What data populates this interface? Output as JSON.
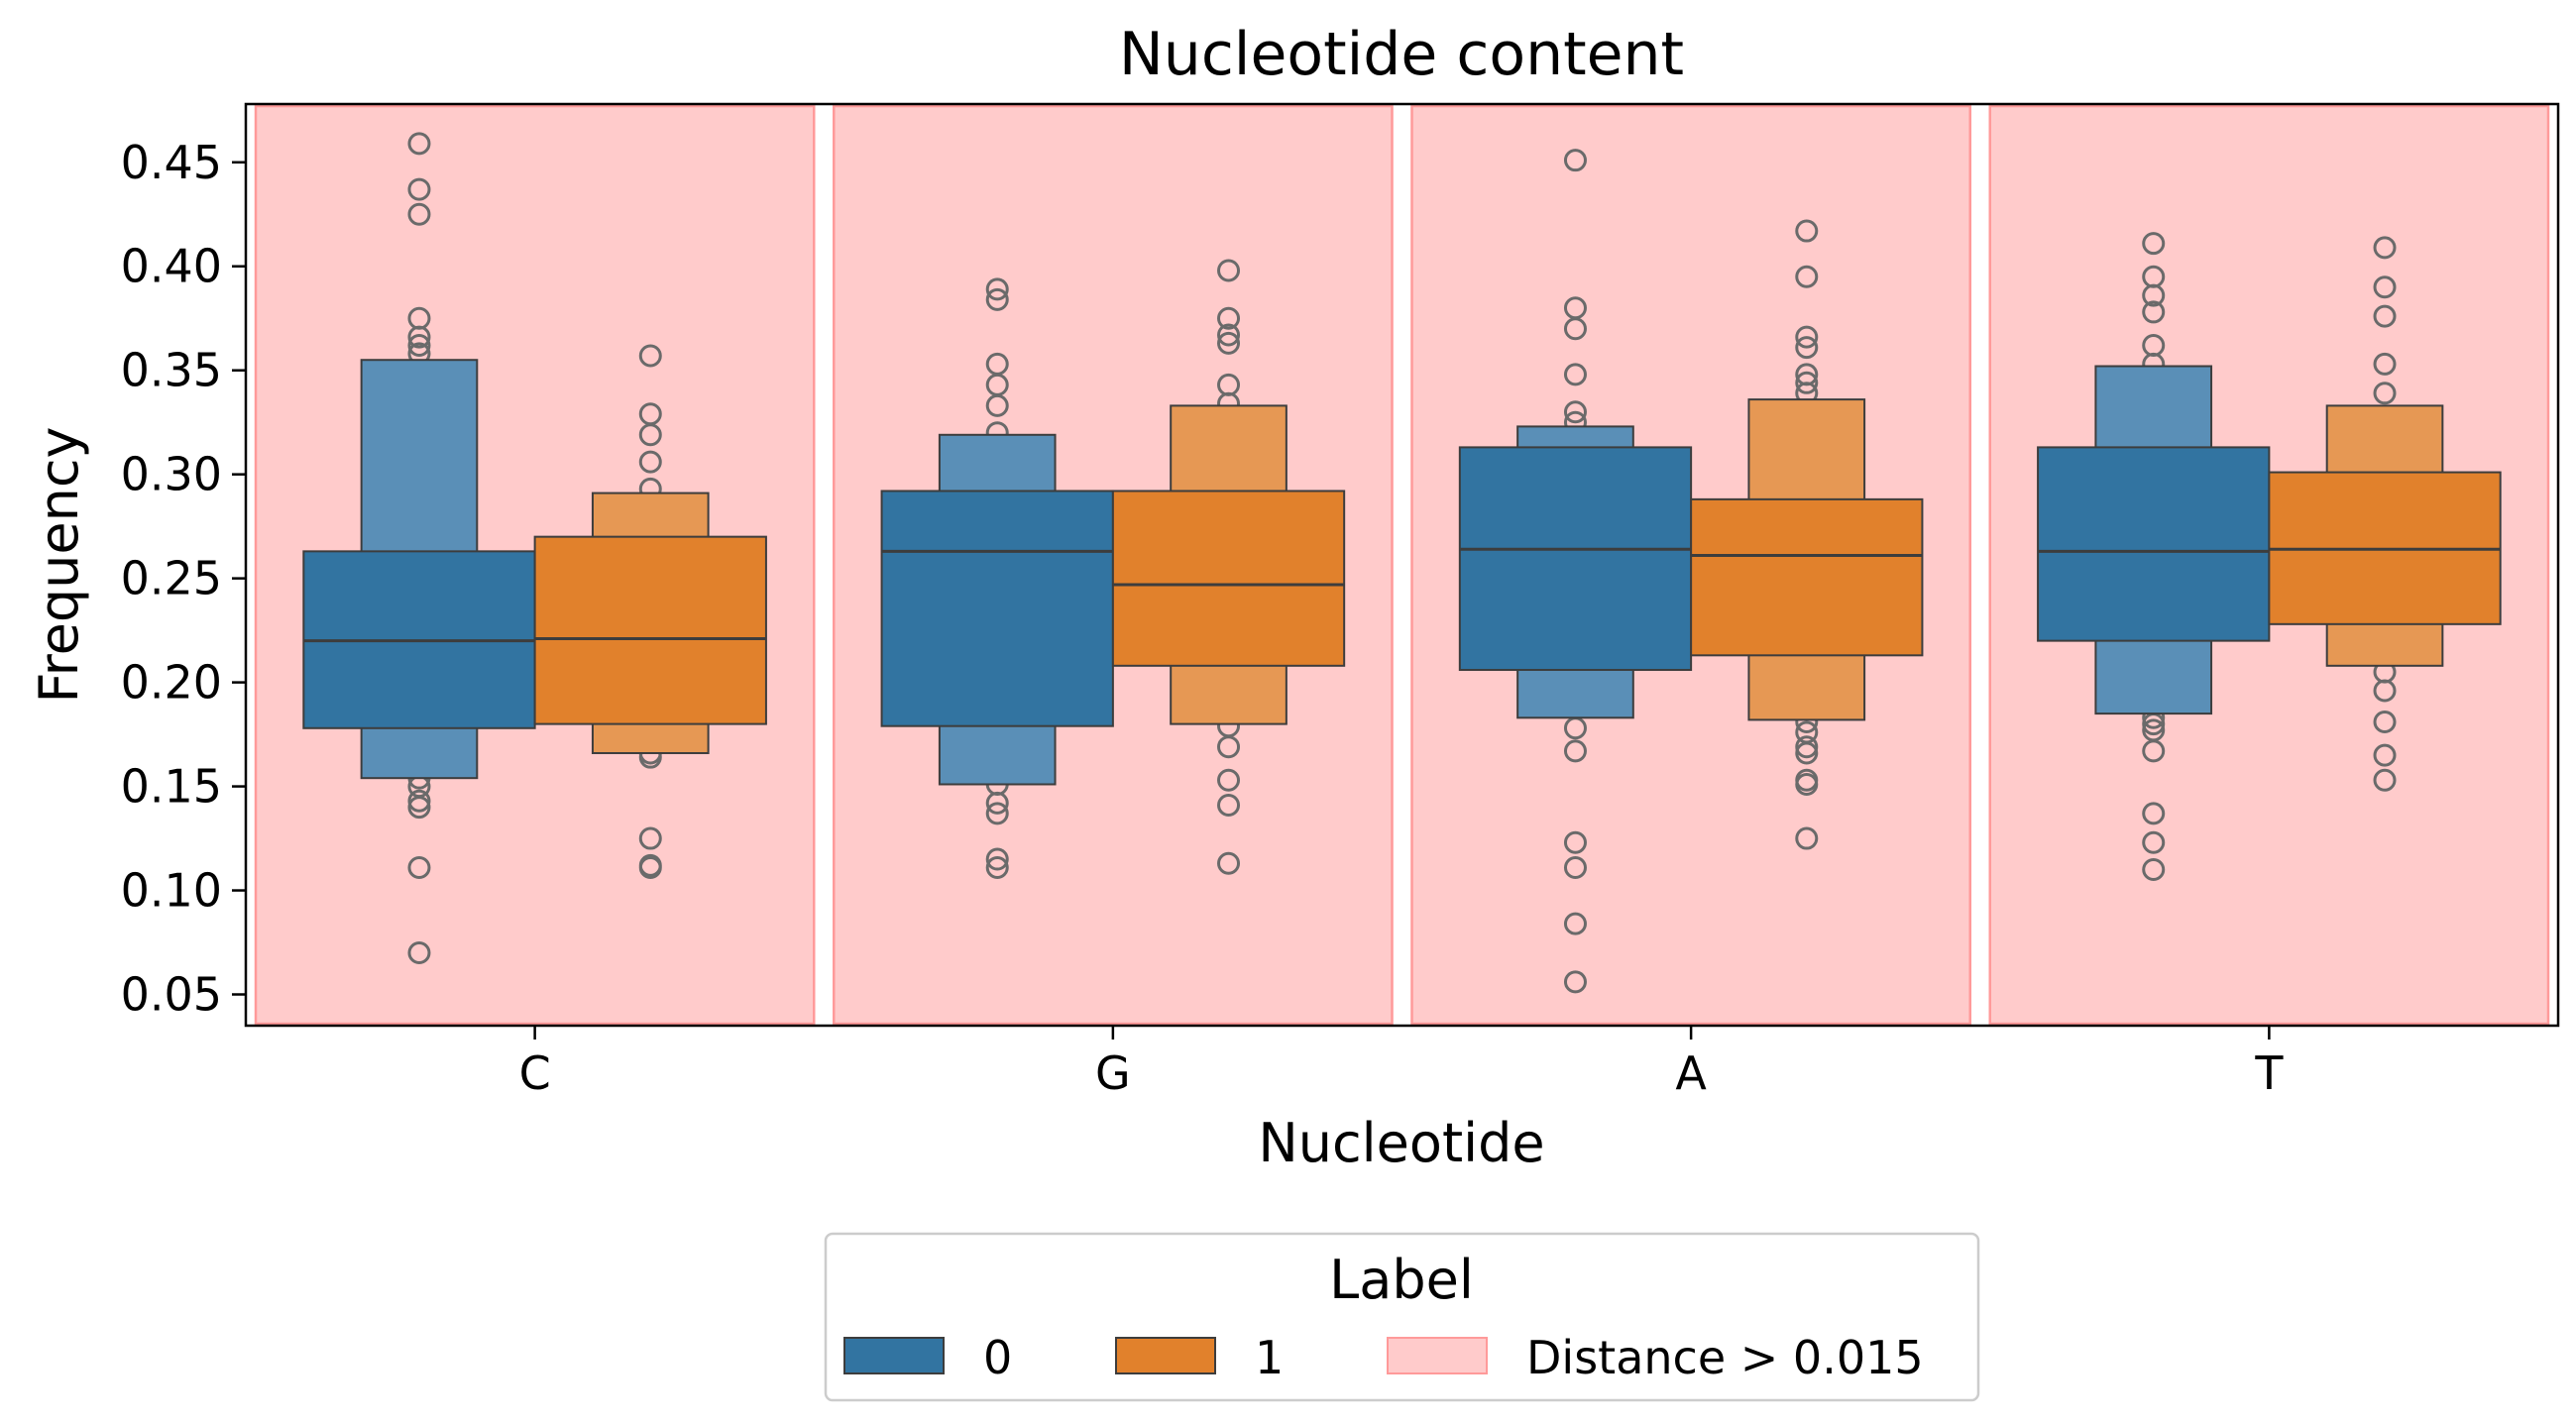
{
  "chart_data": {
    "type": "boxen",
    "title": "Nucleotide content",
    "xlabel": "Nucleotide",
    "ylabel": "Frequency",
    "categories": [
      "C",
      "G",
      "A",
      "T"
    ],
    "ylim": [
      0.035,
      0.478
    ],
    "yticks": [
      0.05,
      0.1,
      0.15,
      0.2,
      0.25,
      0.3,
      0.35,
      0.4,
      0.45
    ],
    "ytick_labels": [
      "0.05",
      "0.10",
      "0.15",
      "0.20",
      "0.25",
      "0.30",
      "0.35",
      "0.40",
      "0.45"
    ],
    "grid": false,
    "colors": {
      "series0": "#3274a1",
      "series0_outer": "#5a8fb7",
      "series1": "#e1812c",
      "series1_outer": "#e69854",
      "highlight": "#ffcbcb",
      "highlight_edge": "#ff9a9a",
      "outlier": "#6a6a6a",
      "edge": "#3d3d3d"
    },
    "highlight_label": "Distance > 0.015",
    "highlighted_categories": [
      "C",
      "G",
      "A",
      "T"
    ],
    "series": [
      {
        "name": "0",
        "boxes": [
          {
            "category": "C",
            "q1": 0.178,
            "median": 0.22,
            "q3": 0.263,
            "lo": 0.154,
            "hi": 0.355,
            "outliers": [
              0.459,
              0.437,
              0.425,
              0.375,
              0.366,
              0.362,
              0.358,
              0.154,
              0.15,
              0.143,
              0.14,
              0.111,
              0.07
            ]
          },
          {
            "category": "G",
            "q1": 0.179,
            "median": 0.263,
            "q3": 0.292,
            "lo": 0.151,
            "hi": 0.319,
            "outliers": [
              0.389,
              0.384,
              0.353,
              0.343,
              0.333,
              0.32,
              0.151,
              0.142,
              0.137,
              0.115,
              0.111
            ]
          },
          {
            "category": "A",
            "q1": 0.206,
            "median": 0.264,
            "q3": 0.313,
            "lo": 0.183,
            "hi": 0.323,
            "outliers": [
              0.451,
              0.38,
              0.37,
              0.348,
              0.33,
              0.325,
              0.178,
              0.167,
              0.123,
              0.111,
              0.084,
              0.056
            ]
          },
          {
            "category": "T",
            "q1": 0.22,
            "median": 0.263,
            "q3": 0.313,
            "lo": 0.185,
            "hi": 0.352,
            "outliers": [
              0.411,
              0.395,
              0.386,
              0.378,
              0.362,
              0.353,
              0.183,
              0.18,
              0.177,
              0.167,
              0.137,
              0.123,
              0.11
            ]
          }
        ]
      },
      {
        "name": "1",
        "boxes": [
          {
            "category": "C",
            "q1": 0.18,
            "median": 0.221,
            "q3": 0.27,
            "lo": 0.166,
            "hi": 0.291,
            "outliers": [
              0.357,
              0.329,
              0.319,
              0.306,
              0.293,
              0.166,
              0.164,
              0.125,
              0.112,
              0.111
            ]
          },
          {
            "category": "G",
            "q1": 0.208,
            "median": 0.247,
            "q3": 0.292,
            "lo": 0.18,
            "hi": 0.333,
            "outliers": [
              0.398,
              0.375,
              0.367,
              0.363,
              0.343,
              0.334,
              0.179,
              0.169,
              0.153,
              0.141,
              0.113
            ]
          },
          {
            "category": "A",
            "q1": 0.213,
            "median": 0.261,
            "q3": 0.288,
            "lo": 0.182,
            "hi": 0.336,
            "outliers": [
              0.417,
              0.395,
              0.366,
              0.361,
              0.348,
              0.344,
              0.339,
              0.181,
              0.176,
              0.169,
              0.166,
              0.153,
              0.151,
              0.125
            ]
          },
          {
            "category": "T",
            "q1": 0.228,
            "median": 0.264,
            "q3": 0.301,
            "lo": 0.208,
            "hi": 0.333,
            "outliers": [
              0.409,
              0.39,
              0.376,
              0.353,
              0.339,
              0.205,
              0.196,
              0.181,
              0.165,
              0.153
            ]
          }
        ]
      }
    ],
    "legend": {
      "title": "Label",
      "placement": "bottom-center, below plot",
      "entries": [
        "0",
        "1",
        "Distance > 0.015"
      ]
    }
  }
}
